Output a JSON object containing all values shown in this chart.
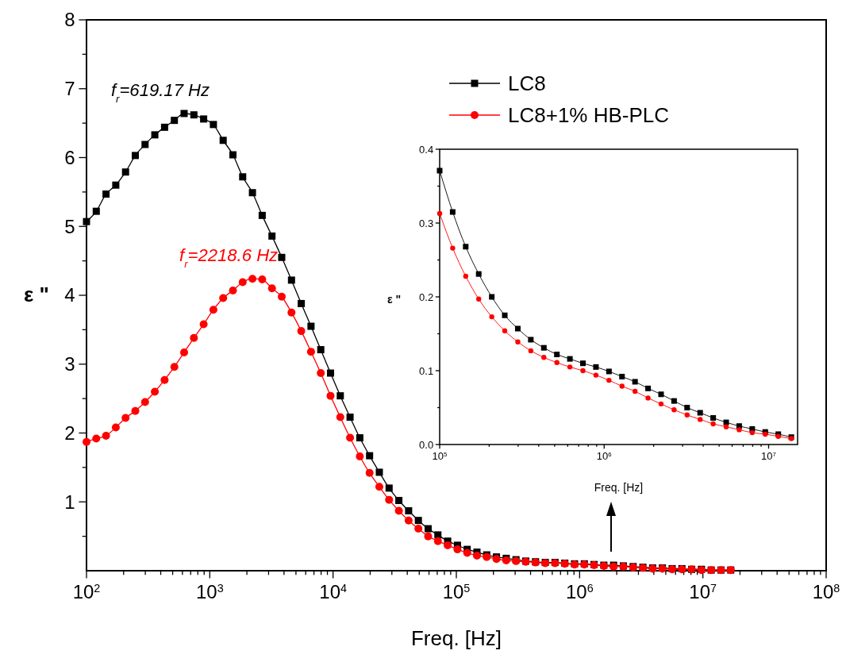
{
  "chart_data": [
    {
      "type": "line",
      "xlabel": "Freq. [Hz]",
      "ylabel": "ε \"",
      "log": "x",
      "legend": "top right",
      "xlim": [
        100,
        100000000
      ],
      "ylim": [
        0,
        8
      ],
      "xticks": [
        {
          "value": 100,
          "label": "10$^{2}$"
        },
        {
          "value": 200,
          "label": null
        },
        {
          "value": 300,
          "label": null
        },
        {
          "value": 400,
          "label": null
        },
        {
          "value": 500,
          "label": null
        },
        {
          "value": 600,
          "label": null
        },
        {
          "value": 700,
          "label": null
        },
        {
          "value": 800,
          "label": null
        },
        {
          "value": 900,
          "label": null
        },
        {
          "value": 1000,
          "label": "10$^{3}$"
        },
        {
          "value": 2000,
          "label": null
        },
        {
          "value": 3000,
          "label": null
        },
        {
          "value": 4000,
          "label": null
        },
        {
          "value": 5000,
          "label": null
        },
        {
          "value": 6000,
          "label": null
        },
        {
          "value": 7000,
          "label": null
        },
        {
          "value": 8000,
          "label": null
        },
        {
          "value": 9000,
          "label": null
        },
        {
          "value": 10000,
          "label": "10$^{4}$"
        },
        {
          "value": 20000,
          "label": null
        },
        {
          "value": 30000,
          "label": null
        },
        {
          "value": 40000,
          "label": null
        },
        {
          "value": 50000,
          "label": null
        },
        {
          "value": 60000,
          "label": null
        },
        {
          "value": 70000,
          "label": null
        },
        {
          "value": 80000,
          "label": null
        },
        {
          "value": 90000,
          "label": null
        },
        {
          "value": 100000,
          "label": "10$^{5}$"
        },
        {
          "value": 200000,
          "label": null
        },
        {
          "value": 300000,
          "label": null
        },
        {
          "value": 400000,
          "label": null
        },
        {
          "value": 500000,
          "label": null
        },
        {
          "value": 600000,
          "label": null
        },
        {
          "value": 700000,
          "label": null
        },
        {
          "value": 800000,
          "label": null
        },
        {
          "value": 900000,
          "label": null
        },
        {
          "value": 1000000,
          "label": "10$^{6}$"
        },
        {
          "value": 2000000,
          "label": null
        },
        {
          "value": 3000000,
          "label": null
        },
        {
          "value": 4000000,
          "label": null
        },
        {
          "value": 5000000,
          "label": null
        },
        {
          "value": 6000000,
          "label": null
        },
        {
          "value": 7000000,
          "label": null
        },
        {
          "value": 8000000,
          "label": null
        },
        {
          "value": 9000000,
          "label": null
        },
        {
          "value": 10000000,
          "label": "10$^{7}$"
        },
        {
          "value": 20000000,
          "label": null
        },
        {
          "value": 30000000,
          "label": null
        },
        {
          "value": 40000000,
          "label": null
        },
        {
          "value": 50000000,
          "label": null
        },
        {
          "value": 60000000,
          "label": null
        },
        {
          "value": 70000000,
          "label": null
        },
        {
          "value": 80000000,
          "label": null
        },
        {
          "value": 90000000,
          "label": null
        },
        {
          "value": 100000000,
          "label": "10$^{8}$"
        }
      ],
      "yticks": [
        {
          "value": 0.5,
          "label": null
        },
        1,
        {
          "value": 1.5,
          "label": null
        },
        2,
        {
          "value": 2.5,
          "label": null
        },
        3,
        {
          "value": 3.5,
          "label": null
        },
        4,
        {
          "value": 4.5,
          "label": null
        },
        5,
        {
          "value": 5.5,
          "label": null
        },
        6,
        {
          "value": 6.5,
          "label": null
        },
        7,
        {
          "value": 7.5,
          "label": null
        },
        8
      ],
      "x": [
        100,
        120,
        144,
        172.8,
        207.4,
        248.8,
        298.6,
        358.3,
        430,
        516,
        619.17,
        743,
        891.6,
        1070,
        1284,
        1541,
        1849,
        2218.6,
        2662,
        3195,
        3834,
        4601,
        5521,
        6625,
        7950,
        9540,
        11448,
        13737,
        16484,
        19781,
        23738,
        28485,
        34182,
        41018,
        49222,
        59066,
        70880,
        85056,
        102100,
        122500,
        147000,
        176400,
        211600,
        254000,
        304800,
        365700,
        438900,
        526600,
        632000,
        758400,
        910000,
        1092000,
        1310000,
        1573000,
        1887000,
        2264000,
        2717000,
        3261000,
        3913000,
        4696000,
        5635000,
        6762000,
        8114000,
        9737000,
        11680000,
        14020000,
        16830000
      ],
      "series": [
        {
          "name": "LC8",
          "color": "#000000",
          "marker": "square",
          "line_style": "solid",
          "values": [
            5.07,
            5.22,
            5.47,
            5.6,
            5.79,
            6.03,
            6.19,
            6.33,
            6.44,
            6.54,
            6.64,
            6.62,
            6.56,
            6.48,
            6.25,
            6.04,
            5.72,
            5.49,
            5.16,
            4.86,
            4.55,
            4.22,
            3.88,
            3.55,
            3.21,
            2.87,
            2.54,
            2.23,
            1.93,
            1.67,
            1.43,
            1.2,
            1.02,
            0.87,
            0.73,
            0.61,
            0.52,
            0.43,
            0.37,
            0.31,
            0.27,
            0.23,
            0.2,
            0.18,
            0.16,
            0.14,
            0.13,
            0.12,
            0.12,
            0.11,
            0.1,
            0.1,
            0.09,
            0.08,
            0.08,
            0.07,
            0.06,
            0.05,
            0.04,
            0.04,
            0.03,
            0.03,
            0.02,
            0.02,
            0.01,
            0.01,
            0.01
          ]
        },
        {
          "name": "LC8+1% HB-PLC",
          "color": "#ff0000",
          "marker": "circle",
          "line_style": "solid",
          "values": [
            1.87,
            1.92,
            1.96,
            2.08,
            2.22,
            2.32,
            2.45,
            2.6,
            2.77,
            2.96,
            3.17,
            3.38,
            3.58,
            3.79,
            3.96,
            4.07,
            4.19,
            4.24,
            4.23,
            4.1,
            3.98,
            3.75,
            3.48,
            3.18,
            2.87,
            2.54,
            2.23,
            1.93,
            1.66,
            1.42,
            1.22,
            1.03,
            0.87,
            0.73,
            0.61,
            0.5,
            0.43,
            0.37,
            0.31,
            0.26,
            0.22,
            0.2,
            0.17,
            0.15,
            0.14,
            0.13,
            0.12,
            0.11,
            0.11,
            0.1,
            0.09,
            0.09,
            0.08,
            0.07,
            0.06,
            0.06,
            0.05,
            0.04,
            0.03,
            0.03,
            0.02,
            0.02,
            0.02,
            0.01,
            0.01,
            0.01,
            0.01
          ]
        }
      ],
      "annotations": [
        {
          "text": "f$_{r}$=619.17 Hz",
          "x": 619.17,
          "y": 6.64
        },
        {
          "text": "f$_{r}$=2218.6 Hz",
          "x": 2218.6,
          "y": 4.24
        }
      ]
    },
    {
      "type": "line",
      "xlabel": "Freq. [Hz]",
      "ylabel": "ε \"",
      "log": "x",
      "xlim": [
        100000,
        15000000
      ],
      "ylim": [
        0,
        0.4
      ],
      "xticks": [
        {
          "value": 100000,
          "label": "10$^{5}$"
        },
        {
          "value": 200000,
          "label": null
        },
        {
          "value": 300000,
          "label": null
        },
        {
          "value": 400000,
          "label": null
        },
        {
          "value": 500000,
          "label": null
        },
        {
          "value": 600000,
          "label": null
        },
        {
          "value": 700000,
          "label": null
        },
        {
          "value": 800000,
          "label": null
        },
        {
          "value": 900000,
          "label": null
        },
        {
          "value": 1000000,
          "label": "10$^{6}$"
        },
        {
          "value": 2000000,
          "label": null
        },
        {
          "value": 3000000,
          "label": null
        },
        {
          "value": 4000000,
          "label": null
        },
        {
          "value": 5000000,
          "label": null
        },
        {
          "value": 6000000,
          "label": null
        },
        {
          "value": 7000000,
          "label": null
        },
        {
          "value": 8000000,
          "label": null
        },
        {
          "value": 9000000,
          "label": null
        },
        {
          "value": 10000000,
          "label": "10$^{7}$"
        }
      ],
      "yticks": [
        {
          "value": 0,
          "label": "0.0"
        },
        {
          "value": 0.05,
          "label": null
        },
        0.1,
        {
          "value": 0.15,
          "label": null
        },
        0.2,
        {
          "value": 0.25,
          "label": null
        },
        0.3,
        {
          "value": 0.35,
          "label": null
        },
        0.4
      ],
      "x": [
        100000,
        120000,
        144000,
        172800,
        207400,
        248800,
        298600,
        358300,
        430000,
        516000,
        619200,
        743000,
        891600,
        1070000,
        1284000,
        1541000,
        1849000,
        2219000,
        2662000,
        3195000,
        3834000,
        4601000,
        5521000,
        6625000,
        7950000,
        9540000,
        11450000,
        13740000
      ],
      "series": [
        {
          "color": "#000000",
          "marker": "square",
          "line_style": "solid",
          "values": [
            0.371,
            0.315,
            0.268,
            0.231,
            0.2,
            0.175,
            0.157,
            0.142,
            0.131,
            0.122,
            0.116,
            0.11,
            0.105,
            0.099,
            0.092,
            0.085,
            0.076,
            0.068,
            0.059,
            0.05,
            0.043,
            0.036,
            0.03,
            0.025,
            0.021,
            0.017,
            0.014,
            0.01
          ]
        },
        {
          "color": "#ff0000",
          "marker": "circle",
          "line_style": "solid",
          "values": [
            0.313,
            0.266,
            0.228,
            0.197,
            0.173,
            0.154,
            0.139,
            0.127,
            0.118,
            0.111,
            0.105,
            0.1,
            0.094,
            0.087,
            0.079,
            0.072,
            0.063,
            0.055,
            0.047,
            0.04,
            0.034,
            0.028,
            0.024,
            0.02,
            0.016,
            0.014,
            0.011,
            0.008
          ]
        }
      ]
    }
  ]
}
